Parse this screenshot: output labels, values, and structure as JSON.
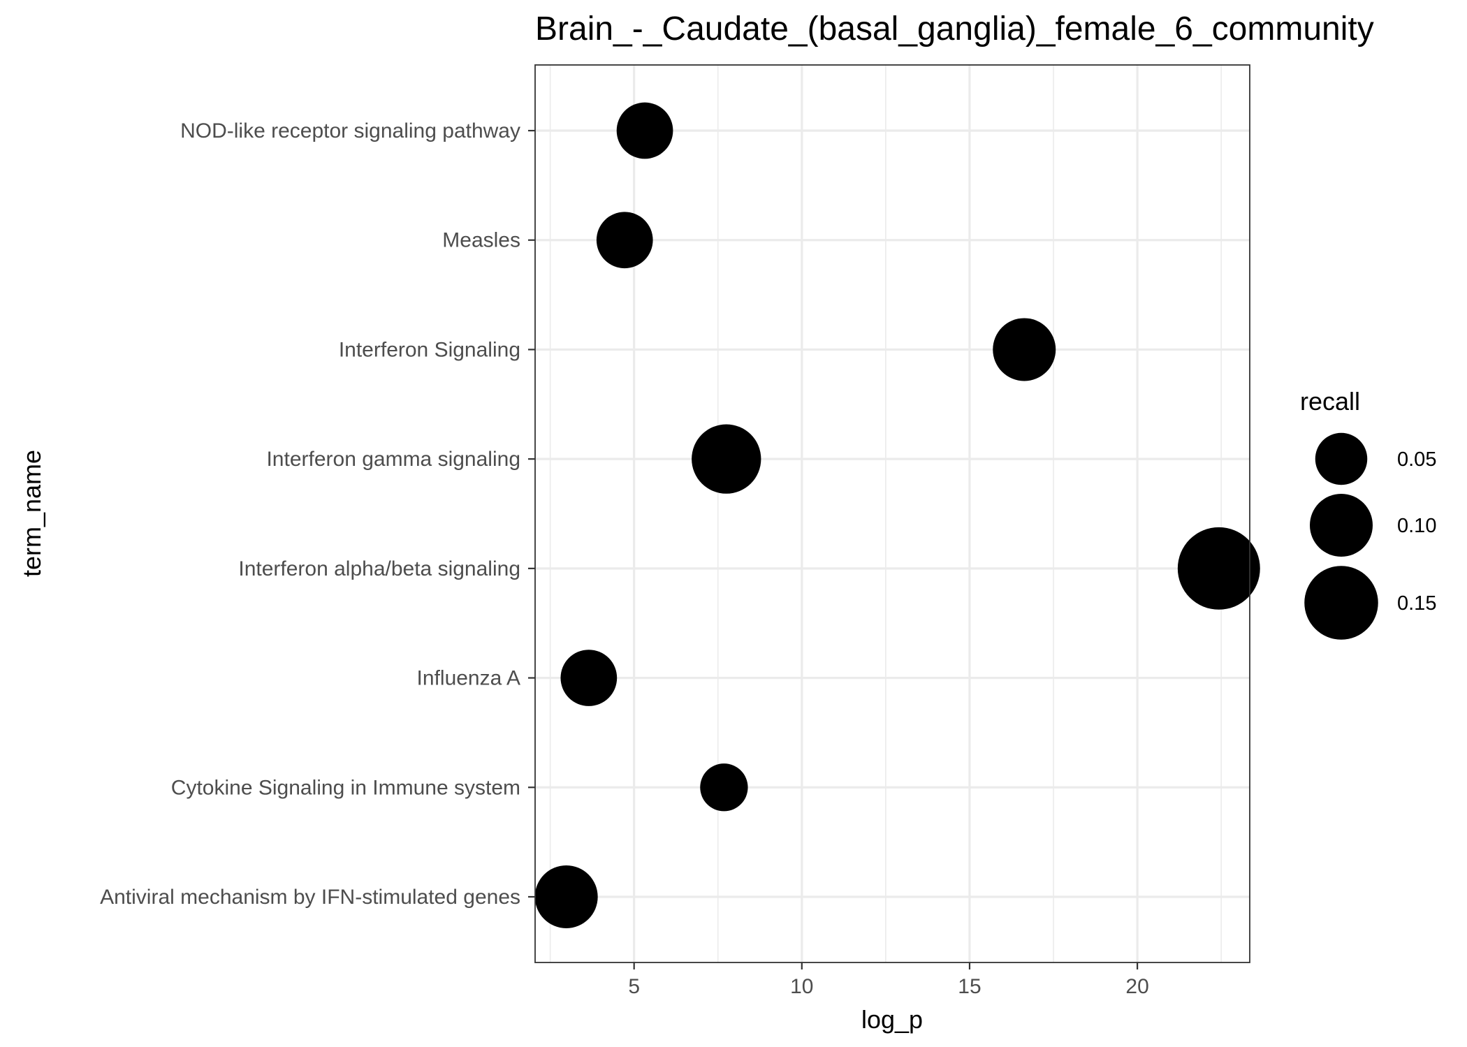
{
  "chart_data": {
    "type": "scatter",
    "title": "Brain_-_Caudate_(basal_ganglia)_female_6_community",
    "xlabel": "log_p",
    "ylabel": "term_name",
    "xlim": [
      2.05,
      23.35
    ],
    "x_ticks": [
      5,
      10,
      15,
      20
    ],
    "x_tick_labels": [
      "5",
      "10",
      "15",
      "20"
    ],
    "grid": true,
    "categories": [
      "Antiviral mechanism by IFN-stimulated genes",
      "Cytokine Signaling in Immune system",
      "Influenza A",
      "Interferon alpha/beta signaling",
      "Interferon gamma signaling",
      "Interferon Signaling",
      "Measles",
      "NOD-like receptor signaling pathway"
    ],
    "points": [
      {
        "term": "Antiviral mechanism by IFN-stimulated genes",
        "x": 2.98,
        "recall": 0.1
      },
      {
        "term": "Cytokine Signaling in Immune system",
        "x": 7.68,
        "recall": 0.03
      },
      {
        "term": "Influenza A",
        "x": 3.65,
        "recall": 0.07
      },
      {
        "term": "Interferon alpha/beta signaling",
        "x": 22.43,
        "recall": 0.19
      },
      {
        "term": "Interferon gamma signaling",
        "x": 7.75,
        "recall": 0.13
      },
      {
        "term": "Interferon Signaling",
        "x": 16.63,
        "recall": 0.1
      },
      {
        "term": "Measles",
        "x": 4.72,
        "recall": 0.07
      },
      {
        "term": "NOD-like receptor signaling pathway",
        "x": 5.32,
        "recall": 0.07
      }
    ],
    "size_legend": {
      "title": "recall",
      "position": "right",
      "entries": [
        {
          "label": "0.05",
          "recall": 0.05
        },
        {
          "label": "0.10",
          "recall": 0.1
        },
        {
          "label": "0.15",
          "recall": 0.15
        }
      ]
    },
    "point_color": "#000000",
    "grid_color": "#ebebeb",
    "panel_border_color": "#333333"
  }
}
